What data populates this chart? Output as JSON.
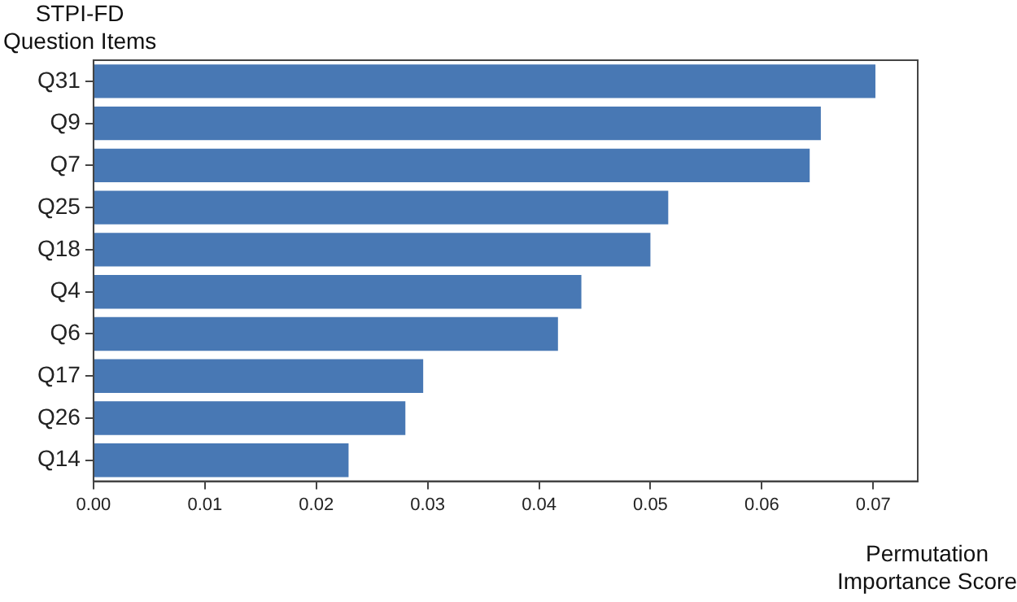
{
  "chart_data": {
    "type": "bar",
    "orientation": "horizontal",
    "xlabel": "Permutation\nImportance Score",
    "ylabel": "STPI-FD\nQuestion Items",
    "categories": [
      "Q31",
      "Q9",
      "Q7",
      "Q25",
      "Q18",
      "Q4",
      "Q6",
      "Q17",
      "Q26",
      "Q14"
    ],
    "values": [
      0.0702,
      0.0653,
      0.0643,
      0.0516,
      0.05,
      0.0438,
      0.0417,
      0.0296,
      0.028,
      0.0229
    ],
    "color": "#4878b4",
    "xlim": [
      0,
      0.074
    ],
    "xticks": [
      {
        "value": 0,
        "label": "0.00"
      },
      0.01,
      0.02,
      0.03,
      0.04,
      0.05,
      0.06,
      0.07
    ],
    "grid": false,
    "legend": false
  }
}
